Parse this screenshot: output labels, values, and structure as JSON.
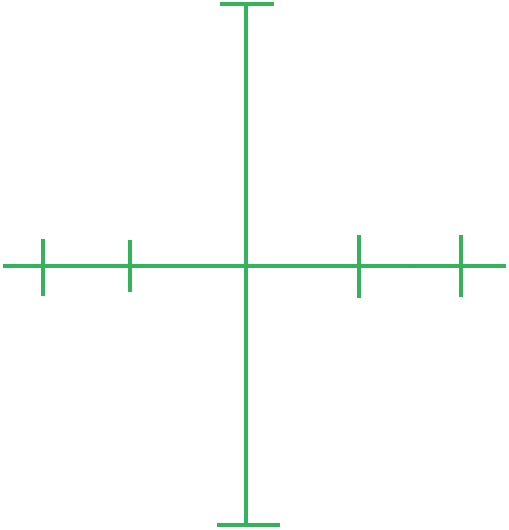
{
  "graphic": {
    "icon": "crosshair-reticle-icon",
    "color": "#34b35a",
    "background": "#ffffff"
  }
}
